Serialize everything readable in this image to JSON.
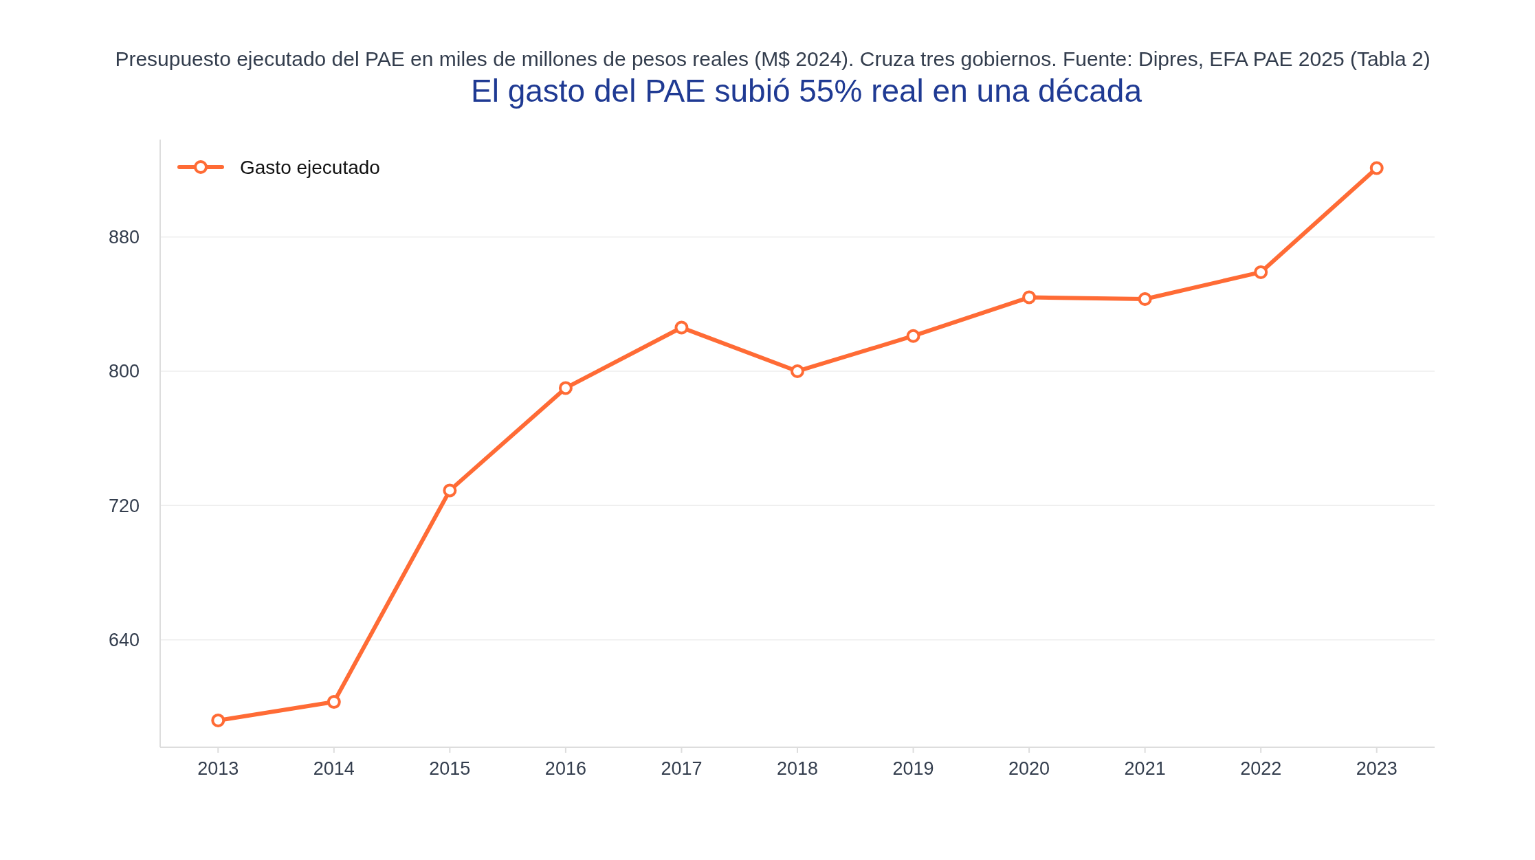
{
  "chart_data": {
    "type": "line",
    "title": "El gasto del PAE subió 55% real en una década",
    "subtitle": "Presupuesto ejecutado del PAE en miles de millones de pesos reales (M$ 2024). Cruza tres gobiernos. Fuente: Dipres, EFA PAE 2025 (Tabla 2)",
    "categories": [
      "2013",
      "2014",
      "2015",
      "2016",
      "2017",
      "2018",
      "2019",
      "2020",
      "2021",
      "2022",
      "2023"
    ],
    "series": [
      {
        "name": "Gasto ejecutado",
        "color": "#ff6b35",
        "values": [
          592,
          603,
          729,
          790,
          826,
          800,
          821,
          844,
          843,
          859,
          921
        ]
      }
    ],
    "ylim": [
      576,
      938
    ],
    "yticks": [
      640,
      720,
      800,
      880
    ],
    "grid": "y",
    "legend": "top left",
    "marker": "circle",
    "line_style": "solid"
  }
}
